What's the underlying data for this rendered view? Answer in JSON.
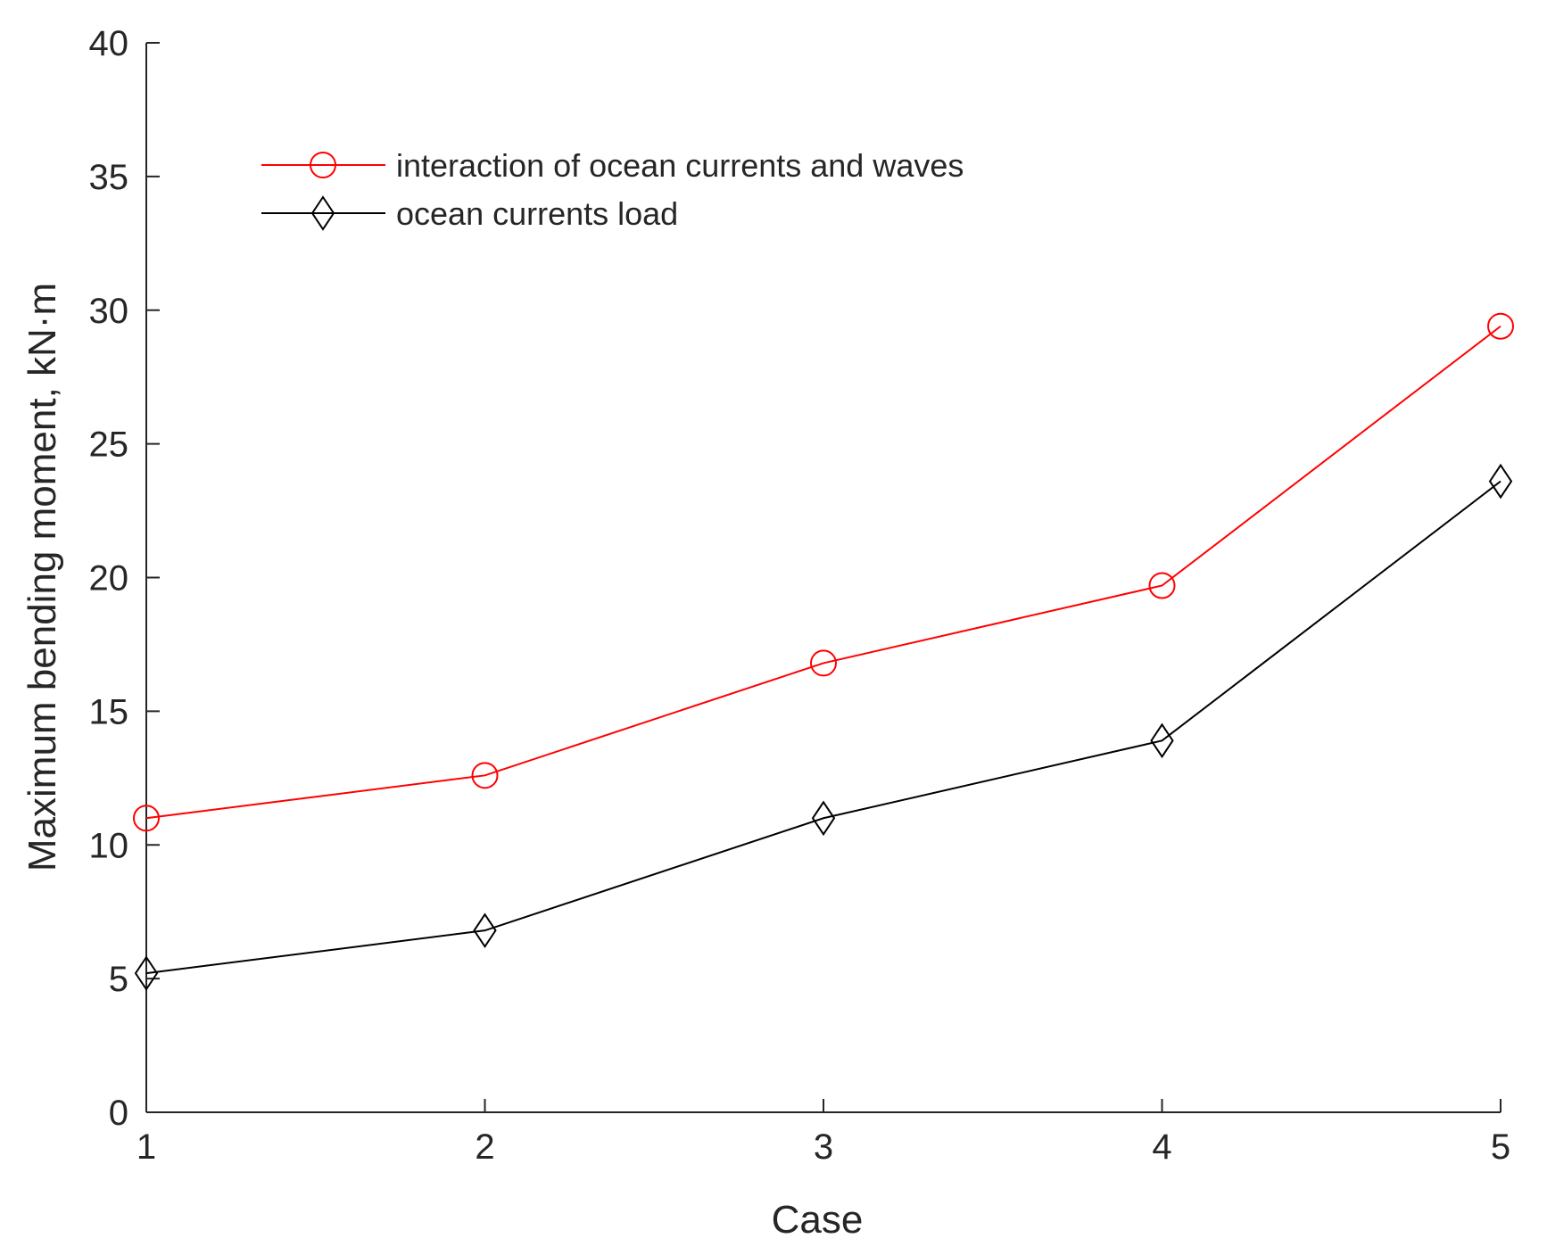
{
  "chart_data": {
    "type": "line",
    "title": "",
    "xlabel": "Case",
    "ylabel": "Maximum bending moment, kN·m",
    "x": [
      1,
      2,
      3,
      4,
      5
    ],
    "xlim": [
      1,
      5
    ],
    "ylim": [
      0,
      40
    ],
    "xticks": [
      "1",
      "2",
      "3",
      "4",
      "5"
    ],
    "yticks": [
      "0",
      "5",
      "10",
      "15",
      "20",
      "25",
      "30",
      "35",
      "40"
    ],
    "grid": false,
    "legend_position": "top-left",
    "series": [
      {
        "name": "interaction of ocean currents and waves",
        "values": [
          11.0,
          12.6,
          16.8,
          19.7,
          29.4
        ],
        "color": "#ff0000",
        "marker": "circle"
      },
      {
        "name": "ocean currents load",
        "values": [
          5.2,
          6.8,
          11.0,
          13.9,
          23.6
        ],
        "color": "#000000",
        "marker": "diamond"
      }
    ]
  }
}
